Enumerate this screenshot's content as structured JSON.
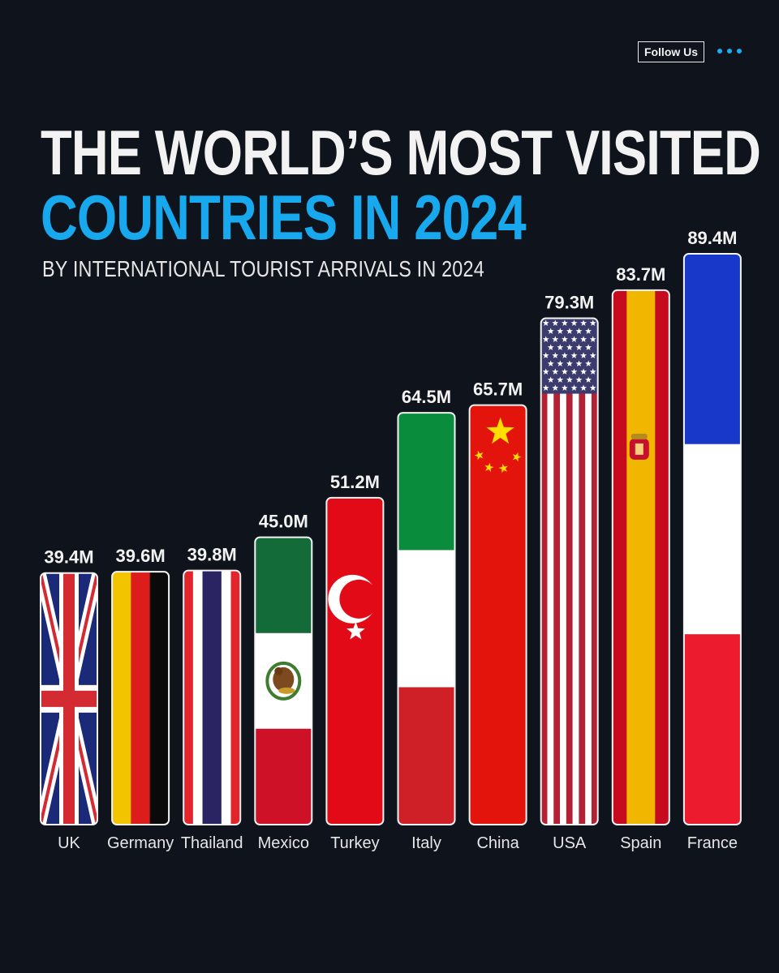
{
  "header": {
    "follow_label": "Follow Us",
    "more_icon": "more-dots-icon",
    "title_line1": "THE WORLD’S MOST VISITED",
    "title_line2": "COUNTRIES IN 2024",
    "subtitle": "BY INTERNATIONAL TOURIST ARRIVALS IN 2024"
  },
  "colors": {
    "background": "#0f131b",
    "accent": "#18a8ee",
    "text": "#f2f2f2"
  },
  "chart_data": {
    "type": "bar",
    "title": "THE WORLD’S MOST VISITED COUNTRIES IN 2024",
    "subtitle": "BY INTERNATIONAL TOURIST ARRIVALS IN 2024",
    "categories": [
      "UK",
      "Germany",
      "Thailand",
      "Mexico",
      "Turkey",
      "Italy",
      "China",
      "USA",
      "Spain",
      "France"
    ],
    "values": [
      39.4,
      39.6,
      39.8,
      45.0,
      51.2,
      64.5,
      65.7,
      79.3,
      83.7,
      89.4
    ],
    "value_labels": [
      "39.4M",
      "39.6M",
      "39.8M",
      "45.0M",
      "51.2M",
      "64.5M",
      "65.7M",
      "79.3M",
      "83.7M",
      "89.4M"
    ],
    "flags": [
      "uk",
      "germany",
      "thailand",
      "mexico",
      "turkey",
      "italy",
      "china",
      "usa",
      "spain",
      "france"
    ],
    "ylim": [
      0,
      89.4
    ],
    "grid": false,
    "legend": "none"
  }
}
